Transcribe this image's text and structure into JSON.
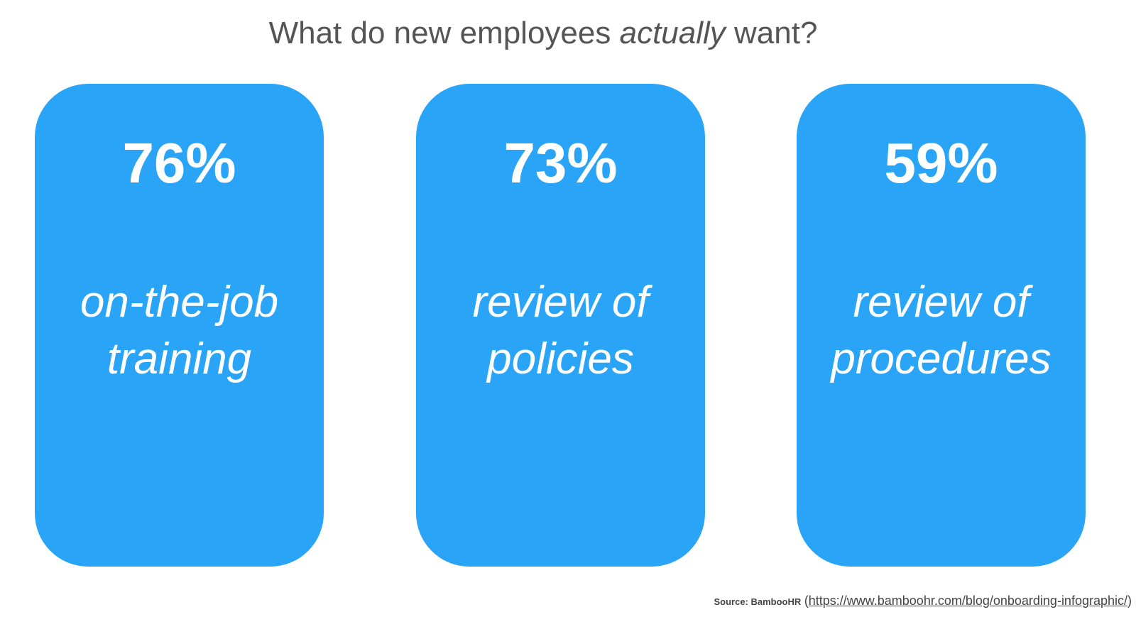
{
  "title": {
    "before": "What do new employees ",
    "emphasis": "actually",
    "after": " want?"
  },
  "cards": [
    {
      "percent": "76%",
      "lines": [
        "on-the-job",
        "training"
      ]
    },
    {
      "percent": "73%",
      "lines": [
        "review of",
        "policies"
      ]
    },
    {
      "percent": "59%",
      "lines": [
        "review of",
        "procedures"
      ]
    }
  ],
  "source": {
    "label": "Source: BambooHR",
    "open_paren": "(",
    "url": "https://www.bamboohr.com/blog/onboarding-infographic/",
    "close_paren": ")"
  },
  "colors": {
    "card_background": "#2aa4f7",
    "title_text": "#555555",
    "card_text": "#ffffff"
  }
}
